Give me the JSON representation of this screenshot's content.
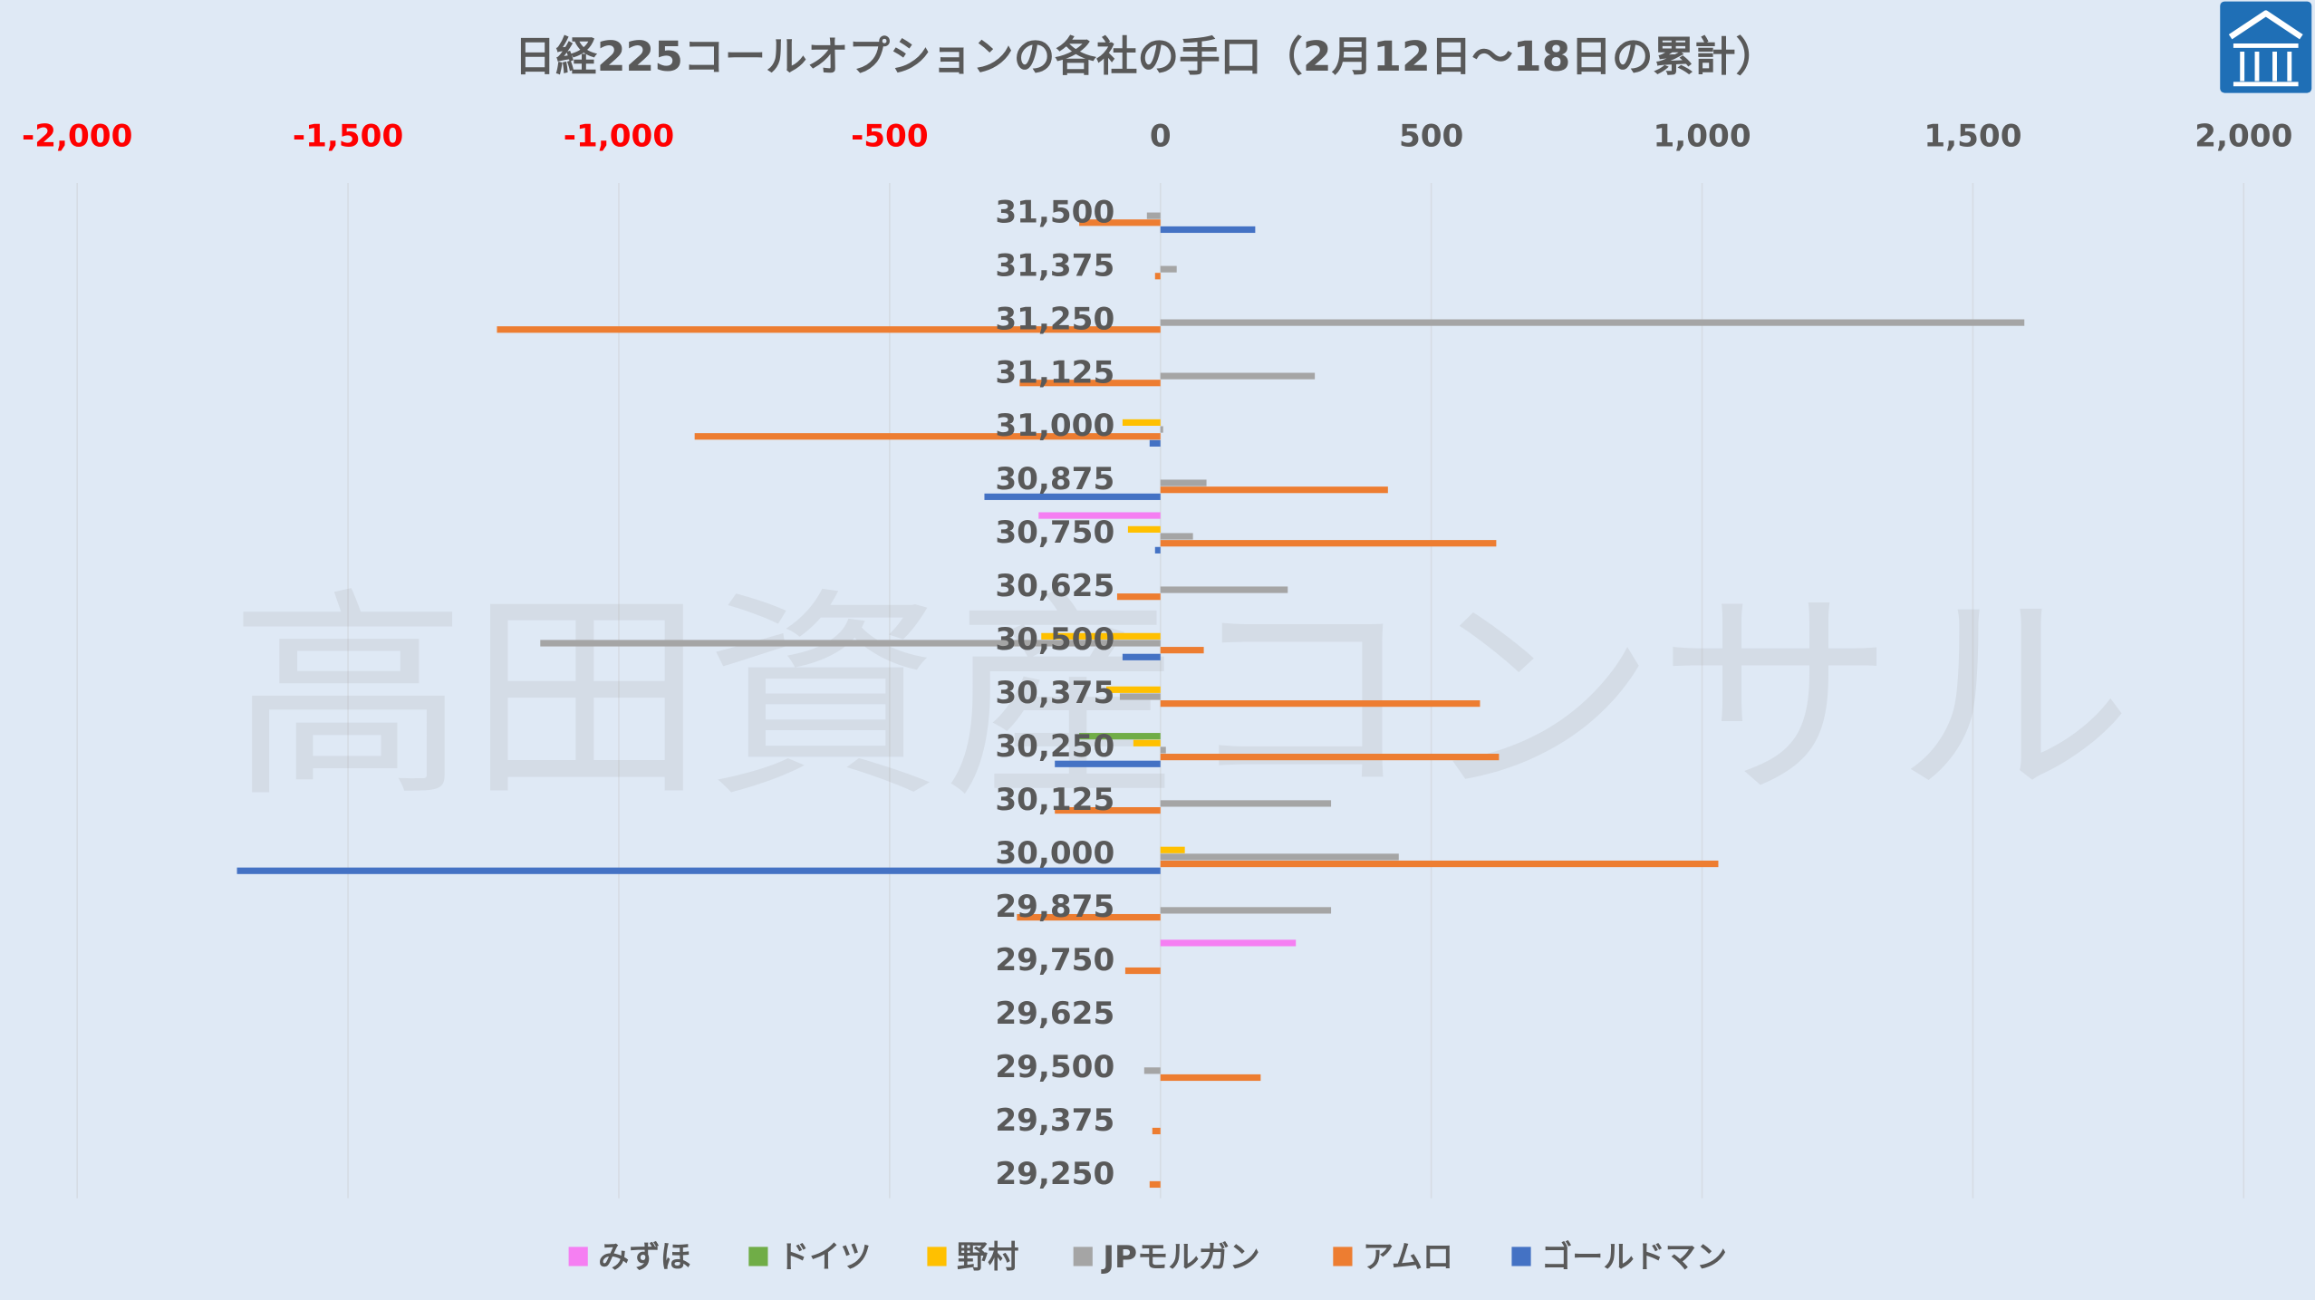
{
  "colors": {
    "background": "#DFE9F5",
    "text": "#595959",
    "negative_tick": "#FF0000",
    "gridline": "#D6DCE4",
    "logo": "#1F6FB6"
  },
  "watermark": {
    "text": "高田資産コンサル"
  },
  "logo": {
    "icon": "house-roof-logo-icon"
  },
  "chart_data": {
    "type": "bar",
    "orientation": "horizontal",
    "title": "日経225コールオプションの各社の手口（2月12日～18日の累計）",
    "xlabel": "",
    "ylabel": "",
    "xlim": [
      -2000,
      2000
    ],
    "xticks": [
      -2000,
      -1500,
      -1000,
      -500,
      0,
      500,
      1000,
      1500,
      2000
    ],
    "xtick_labels": [
      "-2,000",
      "-1,500",
      "-1,000",
      "-500",
      "0",
      "500",
      "1,000",
      "1,500",
      "2,000"
    ],
    "categories": [
      "31,500",
      "31,375",
      "31,250",
      "31,125",
      "31,000",
      "30,875",
      "30,750",
      "30,625",
      "30,500",
      "30,375",
      "30,250",
      "30,125",
      "30,000",
      "29,875",
      "29,750",
      "29,625",
      "29,500",
      "29,375",
      "29,250"
    ],
    "grid": true,
    "legend": "bottom",
    "series": [
      {
        "name": "みずほ",
        "color": "#F57FF2",
        "values": [
          0,
          0,
          0,
          0,
          0,
          0,
          -225,
          0,
          0,
          0,
          0,
          0,
          0,
          0,
          250,
          0,
          0,
          0,
          0
        ]
      },
      {
        "name": "ドイツ",
        "color": "#70AD47",
        "values": [
          0,
          0,
          0,
          0,
          0,
          0,
          0,
          0,
          0,
          0,
          -150,
          0,
          0,
          0,
          0,
          0,
          0,
          0,
          0
        ]
      },
      {
        "name": "野村",
        "color": "#FFC000",
        "values": [
          0,
          0,
          0,
          0,
          -70,
          0,
          -60,
          0,
          -220,
          -100,
          -50,
          0,
          45,
          0,
          0,
          0,
          0,
          0,
          0
        ]
      },
      {
        "name": "JPモルガン",
        "color": "#A5A5A5",
        "values": [
          -25,
          30,
          1595,
          285,
          5,
          85,
          60,
          235,
          -1145,
          -75,
          10,
          315,
          440,
          315,
          0,
          0,
          -30,
          0,
          0
        ]
      },
      {
        "name": "アムロ",
        "color": "#ED7D31",
        "values": [
          -150,
          -10,
          -1225,
          -260,
          -860,
          420,
          620,
          -80,
          80,
          590,
          625,
          -195,
          1030,
          -265,
          -65,
          0,
          185,
          -15,
          -20
        ]
      },
      {
        "name": "ゴールドマン",
        "color": "#4472C4",
        "values": [
          175,
          0,
          0,
          0,
          -20,
          -325,
          -10,
          0,
          -70,
          0,
          -195,
          0,
          -1705,
          0,
          0,
          0,
          0,
          0,
          0
        ]
      }
    ]
  }
}
